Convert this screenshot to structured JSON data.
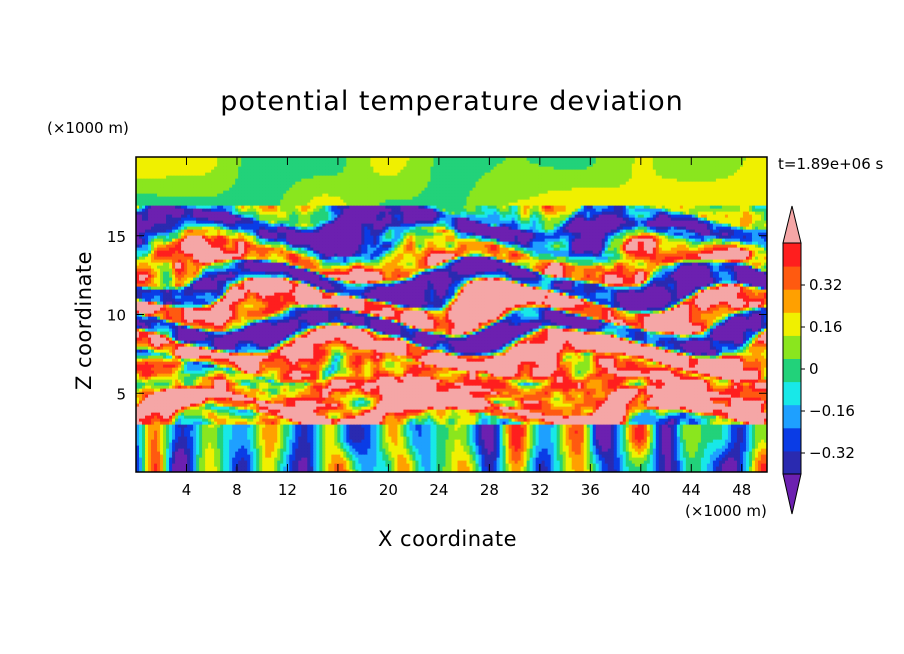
{
  "chart_data": {
    "type": "heatmap",
    "title": "potential temperature deviation",
    "xlabel": "X coordinate",
    "ylabel": "Z coordinate",
    "x_unit": "(×1000 m)",
    "z_unit": "(×1000 m)",
    "timestamp": "t=1.89e+06 s",
    "xlim": [
      0,
      50
    ],
    "ylim": [
      0,
      20
    ],
    "x_ticks": [
      4,
      8,
      12,
      16,
      20,
      24,
      28,
      32,
      36,
      40,
      44,
      48
    ],
    "y_ticks": [
      5,
      10,
      15
    ],
    "colorbar": {
      "levels": [
        -0.4,
        -0.32,
        -0.24,
        -0.16,
        -0.08,
        0,
        0.08,
        0.16,
        0.24,
        0.32,
        0.4
      ],
      "tick_labels": [
        "0.32",
        "0.16",
        "0",
        "−0.16",
        "−0.32"
      ],
      "tick_values": [
        0.32,
        0.16,
        0,
        -0.16,
        -0.32
      ],
      "colors": [
        "#6c20b0",
        "#2a2ab0",
        "#0a3ce6",
        "#1ea0ff",
        "#18e8e8",
        "#22d27a",
        "#8ae61e",
        "#f0f000",
        "#ffa000",
        "#ff5a10",
        "#ff1e1e",
        "#f5a6a6"
      ],
      "extend": "both"
    },
    "bands": [
      {
        "z": [
          0,
          2.5
        ],
        "value": -0.05,
        "desc": "mixed"
      },
      {
        "z": [
          3.5,
          4.2
        ],
        "value": 0.45
      },
      {
        "z": [
          4.2,
          5.2
        ],
        "value": 0.3
      },
      {
        "z": [
          5.5,
          6.3
        ],
        "value": 0.2
      },
      {
        "z": [
          7,
          8.2
        ],
        "value": 0.45
      },
      {
        "z": [
          8.5,
          9.5
        ],
        "value": -0.45
      },
      {
        "z": [
          10,
          11
        ],
        "value": 0.45
      },
      {
        "z": [
          11.5,
          12.5
        ],
        "value": -0.45
      },
      {
        "z": [
          13,
          14
        ],
        "value": 0.35
      },
      {
        "z": [
          15,
          16
        ],
        "value": -0.4
      },
      {
        "z": [
          17,
          20
        ],
        "value": 0.05
      }
    ]
  }
}
